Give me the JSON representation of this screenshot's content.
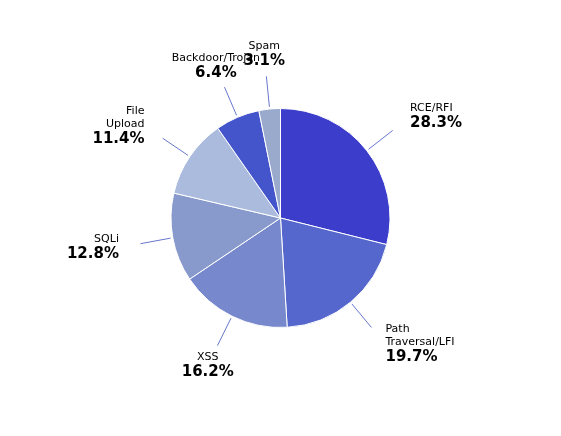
{
  "chart_data": {
    "type": "pie",
    "categories": [
      "RCE/RFI",
      "Path\nTraversal/LFI",
      "XSS",
      "SQLi",
      "File\nUpload",
      "Backdoor/Trojan",
      "Spam"
    ],
    "values": [
      28.3,
      19.7,
      16.2,
      12.8,
      11.4,
      6.4,
      3.1
    ],
    "value_labels": [
      "28.3%",
      "19.7%",
      "16.2%",
      "12.8%",
      "11.4%",
      "6.4%",
      "3.1%"
    ],
    "colors": [
      "#3d3dcc",
      "#5566cc",
      "#7788cc",
      "#8899cc",
      "#aabbdd",
      "#4455cc",
      "#99aacc"
    ],
    "data_labels": true
  }
}
